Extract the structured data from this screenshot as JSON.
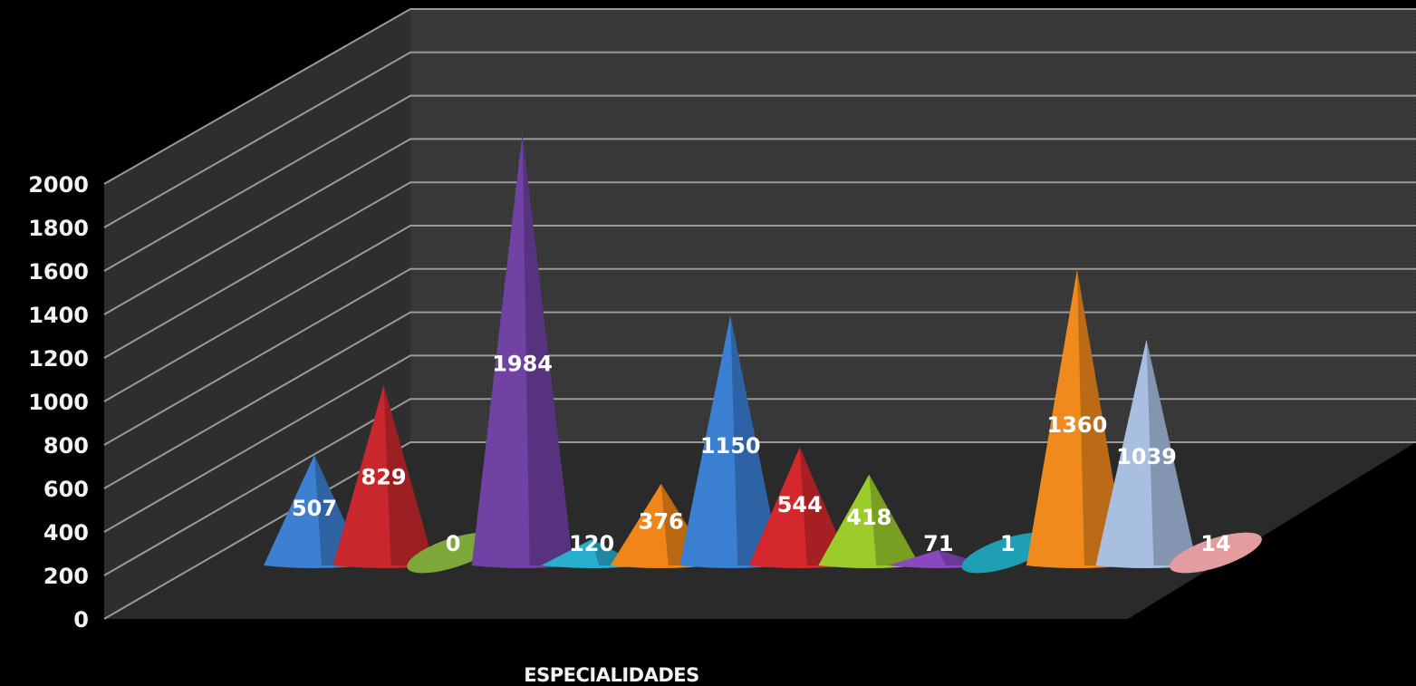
{
  "chart_data": {
    "type": "bar",
    "style": "3d-cone",
    "title": "",
    "xlabel": "ESPECIALIDADES",
    "ylabel": "",
    "ylim": [
      0,
      2000
    ],
    "yticks": [
      0,
      200,
      400,
      600,
      800,
      1000,
      1200,
      1400,
      1600,
      1800,
      2000
    ],
    "grid": true,
    "legend": "none",
    "values": [
      507,
      829,
      0,
      1984,
      120,
      376,
      1150,
      544,
      418,
      71,
      1,
      1360,
      1039,
      14
    ],
    "data_labels": [
      "507",
      "829",
      "0",
      "1984",
      "120",
      "376",
      "1150",
      "544",
      "418",
      "71",
      "1",
      "1360",
      "1039",
      "14"
    ],
    "colors": [
      "#3d7fd0",
      "#c8282d",
      "#7da83a",
      "#7042a3",
      "#29aed0",
      "#ef8617",
      "#3a7fd2",
      "#d5282d",
      "#9ccc2c",
      "#8a48c0",
      "#1f9fb4",
      "#f08a1d",
      "#a8bfe2",
      "#e39ca0"
    ]
  },
  "colors": {
    "background": "#000000",
    "wall": "#383838",
    "gridline": "#9a9a9a"
  }
}
